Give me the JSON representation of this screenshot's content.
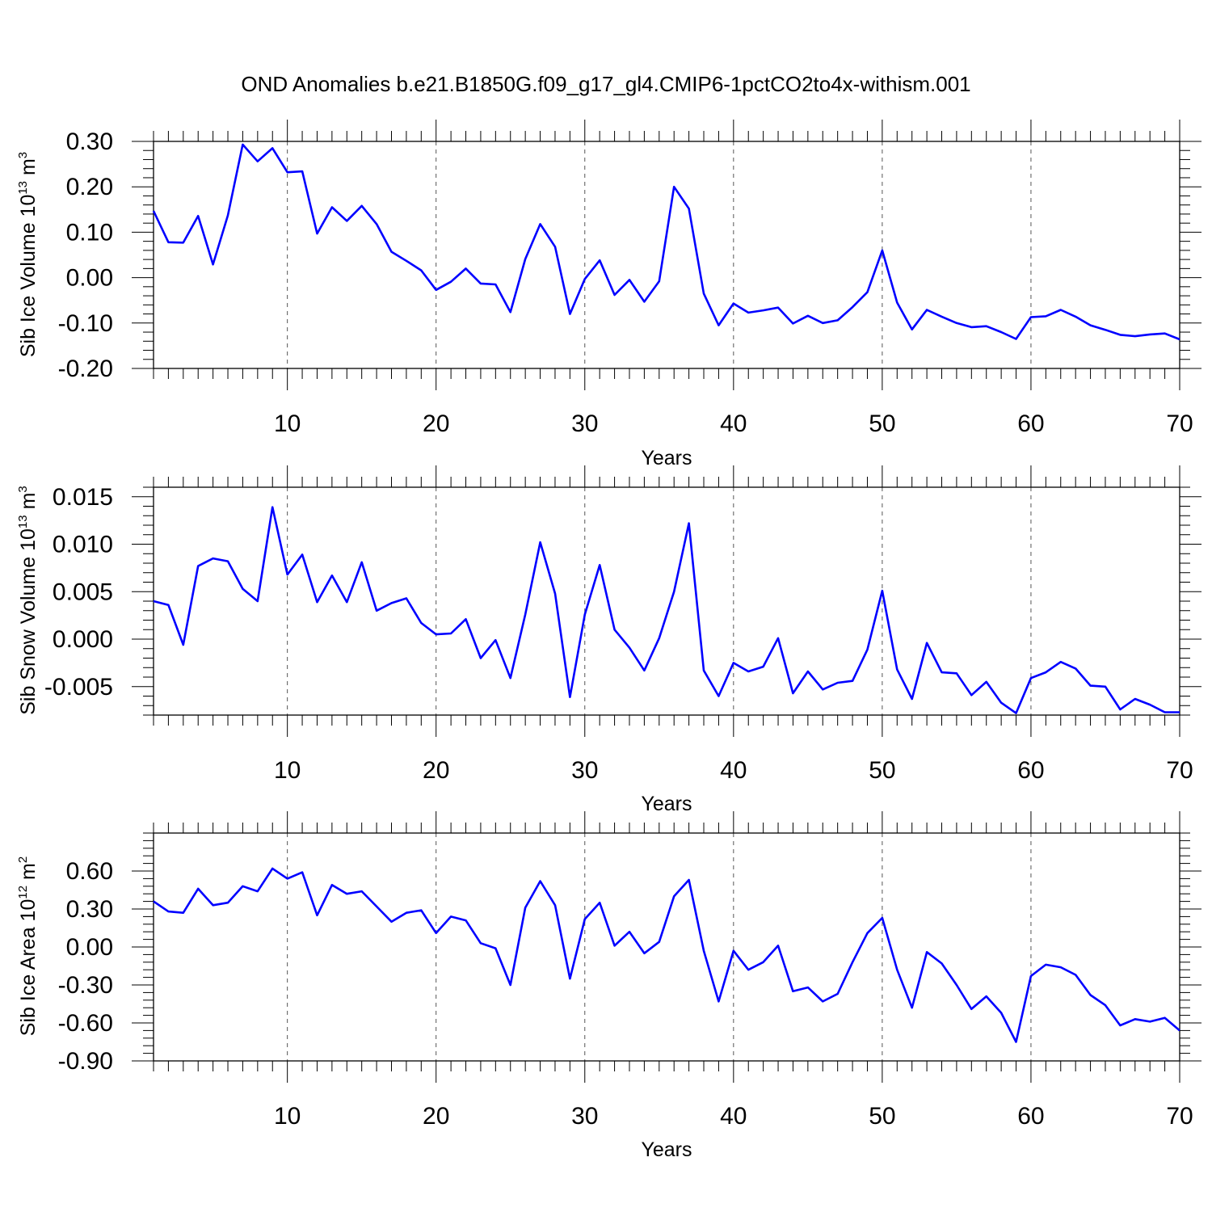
{
  "title": "OND Anomalies b.e21.B1850G.f09_g17_gl4.CMIP6-1pctCO2to4x-withism.001",
  "colors": {
    "line": "#0000ff",
    "axis": "#000000",
    "grid": "#555555"
  },
  "chart_data": [
    {
      "type": "line",
      "ylabel": {
        "main": "Sib Ice Volume 10",
        "exp": "13",
        "unit": " m",
        "unit_exp": "3"
      },
      "xlabel": "Years",
      "xlim": [
        1,
        70
      ],
      "ylim": [
        -0.2,
        0.3
      ],
      "yticks": [
        -0.2,
        -0.1,
        0.0,
        0.1,
        0.2,
        0.3
      ],
      "ytick_labels": [
        "-0.20",
        "-0.10",
        "0.00",
        "0.10",
        "0.20",
        "0.30"
      ],
      "xticks": [
        10,
        20,
        30,
        40,
        50,
        60,
        70
      ],
      "xtick_labels": [
        "10",
        "20",
        "30",
        "40",
        "50",
        "60",
        "70"
      ],
      "grid": "vertical dashed at x major ticks",
      "x": [
        1,
        2,
        3,
        4,
        5,
        6,
        7,
        8,
        9,
        10,
        11,
        12,
        13,
        14,
        15,
        16,
        17,
        18,
        19,
        20,
        21,
        22,
        23,
        24,
        25,
        26,
        27,
        28,
        29,
        30,
        31,
        32,
        33,
        34,
        35,
        36,
        37,
        38,
        39,
        40,
        41,
        42,
        43,
        44,
        45,
        46,
        47,
        48,
        49,
        50,
        51,
        52,
        53,
        54,
        55,
        56,
        57,
        58,
        59,
        60,
        61,
        62,
        63,
        64,
        65,
        66,
        67,
        68,
        69,
        70
      ],
      "y": [
        0.147,
        0.078,
        0.077,
        0.136,
        0.029,
        0.137,
        0.293,
        0.256,
        0.285,
        0.232,
        0.234,
        0.097,
        0.155,
        0.125,
        0.158,
        0.118,
        0.057,
        0.037,
        0.016,
        -0.027,
        -0.009,
        0.02,
        -0.013,
        -0.015,
        -0.076,
        0.041,
        0.118,
        0.068,
        -0.08,
        -0.003,
        0.038,
        -0.038,
        -0.005,
        -0.053,
        -0.008,
        0.2,
        0.152,
        -0.035,
        -0.105,
        -0.057,
        -0.077,
        -0.072,
        -0.066,
        -0.101,
        -0.084,
        -0.1,
        -0.094,
        -0.065,
        -0.032,
        0.06,
        -0.055,
        -0.114,
        -0.071,
        -0.086,
        -0.1,
        -0.109,
        -0.107,
        -0.12,
        -0.135,
        -0.087,
        -0.085,
        -0.071,
        -0.086,
        -0.105,
        -0.115,
        -0.126,
        -0.129,
        -0.125,
        -0.123,
        -0.136
      ]
    },
    {
      "type": "line",
      "ylabel": {
        "main": "Sib Snow Volume 10",
        "exp": "13",
        "unit": " m",
        "unit_exp": "3"
      },
      "xlabel": "Years",
      "xlim": [
        1,
        70
      ],
      "ylim": [
        -0.008,
        0.016
      ],
      "yticks": [
        -0.005,
        0.0,
        0.005,
        0.01,
        0.015
      ],
      "ytick_labels": [
        "-0.005",
        "0.000",
        "0.005",
        "0.010",
        "0.015"
      ],
      "xticks": [
        10,
        20,
        30,
        40,
        50,
        60,
        70
      ],
      "xtick_labels": [
        "10",
        "20",
        "30",
        "40",
        "50",
        "60",
        "70"
      ],
      "grid": "vertical dashed at x major ticks",
      "x": [
        1,
        2,
        3,
        4,
        5,
        6,
        7,
        8,
        9,
        10,
        11,
        12,
        13,
        14,
        15,
        16,
        17,
        18,
        19,
        20,
        21,
        22,
        23,
        24,
        25,
        26,
        27,
        28,
        29,
        30,
        31,
        32,
        33,
        34,
        35,
        36,
        37,
        38,
        39,
        40,
        41,
        42,
        43,
        44,
        45,
        46,
        47,
        48,
        49,
        50,
        51,
        52,
        53,
        54,
        55,
        56,
        57,
        58,
        59,
        60,
        61,
        62,
        63,
        64,
        65,
        66,
        67,
        68,
        69,
        70
      ],
      "y": [
        0.004,
        0.0036,
        -0.0006,
        0.0077,
        0.0085,
        0.0082,
        0.0053,
        0.004,
        0.0139,
        0.0068,
        0.0089,
        0.0039,
        0.0067,
        0.0039,
        0.0081,
        0.003,
        0.0038,
        0.0043,
        0.0017,
        0.0005,
        0.0006,
        0.0021,
        -0.002,
        -0.0001,
        -0.0041,
        0.0026,
        0.0102,
        0.0048,
        -0.0061,
        0.0026,
        0.0078,
        0.001,
        -0.0009,
        -0.0033,
        0.0001,
        0.005,
        0.0122,
        -0.0033,
        -0.006,
        -0.0025,
        -0.0034,
        -0.0029,
        0.0001,
        -0.0057,
        -0.0034,
        -0.0053,
        -0.0046,
        -0.0044,
        -0.0011,
        0.0051,
        -0.0032,
        -0.0063,
        -0.0004,
        -0.0035,
        -0.0036,
        -0.0059,
        -0.0045,
        -0.0067,
        -0.0078,
        -0.0041,
        -0.0035,
        -0.0024,
        -0.0031,
        -0.0049,
        -0.005,
        -0.0074,
        -0.0063,
        -0.0069,
        -0.0077,
        -0.0077
      ]
    },
    {
      "type": "line",
      "ylabel": {
        "main": "Sib Ice Area 10",
        "exp": "12",
        "unit": " m",
        "unit_exp": "2"
      },
      "xlabel": "Years",
      "xlim": [
        1,
        70
      ],
      "ylim": [
        -0.9,
        0.9
      ],
      "yticks": [
        -0.9,
        -0.6,
        -0.3,
        0.0,
        0.3,
        0.6
      ],
      "ytick_labels": [
        "-0.90",
        "-0.60",
        "-0.30",
        "0.00",
        "0.30",
        "0.60"
      ],
      "xticks": [
        10,
        20,
        30,
        40,
        50,
        60,
        70
      ],
      "xtick_labels": [
        "10",
        "20",
        "30",
        "40",
        "50",
        "60",
        "70"
      ],
      "grid": "vertical dashed at x major ticks",
      "x": [
        1,
        2,
        3,
        4,
        5,
        6,
        7,
        8,
        9,
        10,
        11,
        12,
        13,
        14,
        15,
        16,
        17,
        18,
        19,
        20,
        21,
        22,
        23,
        24,
        25,
        26,
        27,
        28,
        29,
        30,
        31,
        32,
        33,
        34,
        35,
        36,
        37,
        38,
        39,
        40,
        41,
        42,
        43,
        44,
        45,
        46,
        47,
        48,
        49,
        50,
        51,
        52,
        53,
        54,
        55,
        56,
        57,
        58,
        59,
        60,
        61,
        62,
        63,
        64,
        65,
        66,
        67,
        68,
        69,
        70
      ],
      "y": [
        0.36,
        0.28,
        0.27,
        0.46,
        0.33,
        0.35,
        0.48,
        0.44,
        0.62,
        0.54,
        0.59,
        0.25,
        0.49,
        0.42,
        0.44,
        0.32,
        0.2,
        0.27,
        0.29,
        0.11,
        0.24,
        0.21,
        0.03,
        -0.01,
        -0.3,
        0.31,
        0.52,
        0.33,
        -0.25,
        0.22,
        0.35,
        0.01,
        0.12,
        -0.05,
        0.04,
        0.4,
        0.53,
        -0.03,
        -0.43,
        -0.03,
        -0.18,
        -0.12,
        0.01,
        -0.35,
        -0.32,
        -0.43,
        -0.37,
        -0.12,
        0.11,
        0.23,
        -0.18,
        -0.48,
        -0.04,
        -0.13,
        -0.3,
        -0.49,
        -0.39,
        -0.52,
        -0.75,
        -0.23,
        -0.14,
        -0.16,
        -0.22,
        -0.38,
        -0.46,
        -0.62,
        -0.57,
        -0.59,
        -0.56,
        -0.66
      ]
    }
  ]
}
